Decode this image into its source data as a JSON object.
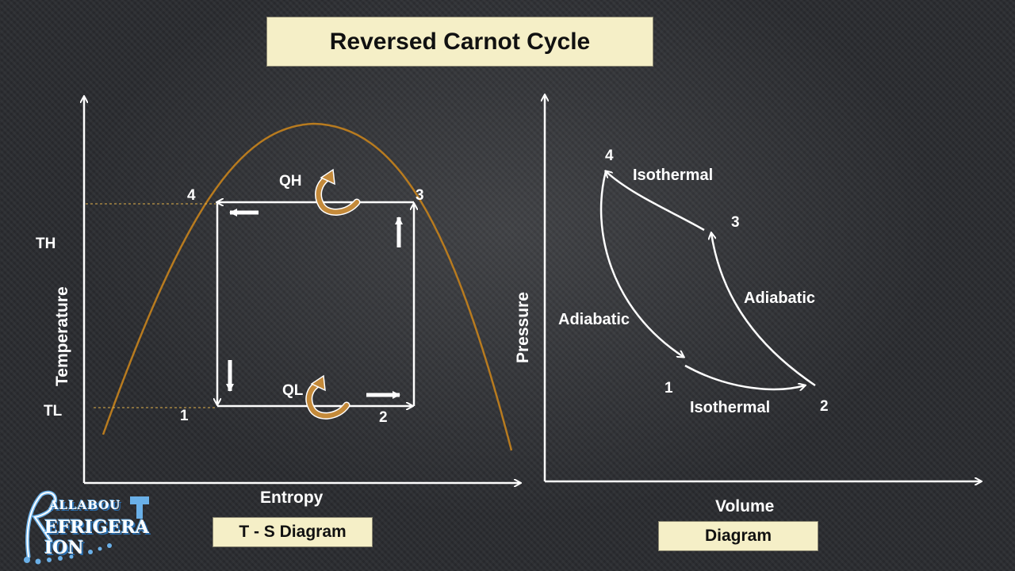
{
  "title": "Reversed Carnot Cycle",
  "ts_diagram": {
    "caption": "T - S Diagram",
    "x_axis_label": "Entropy",
    "y_axis_label": "Temperature",
    "th_label": "TH",
    "tl_label": "TL",
    "qh_label": "QH",
    "ql_label": "QL",
    "points": [
      "1",
      "2",
      "3",
      "4"
    ]
  },
  "pv_diagram": {
    "caption": "Diagram",
    "x_axis_label": "Volume",
    "y_axis_label": "Pressure",
    "points": [
      "1",
      "2",
      "3",
      "4"
    ],
    "process_labels": {
      "top_isothermal": "Isothermal",
      "bottom_isothermal": "Isothermal",
      "left_adiabatic": "Adiabatic",
      "right_adiabatic": "Adiabatic"
    }
  },
  "logo": {
    "line1": "ALLABOU",
    "line2": "EFRIGERA  ION",
    "letter_r": "R"
  },
  "colors": {
    "dome": "#b87b1f",
    "heat_arrow": "#c48a3a",
    "caption_bg": "#f5efc7",
    "guide": "#e0b04a"
  }
}
